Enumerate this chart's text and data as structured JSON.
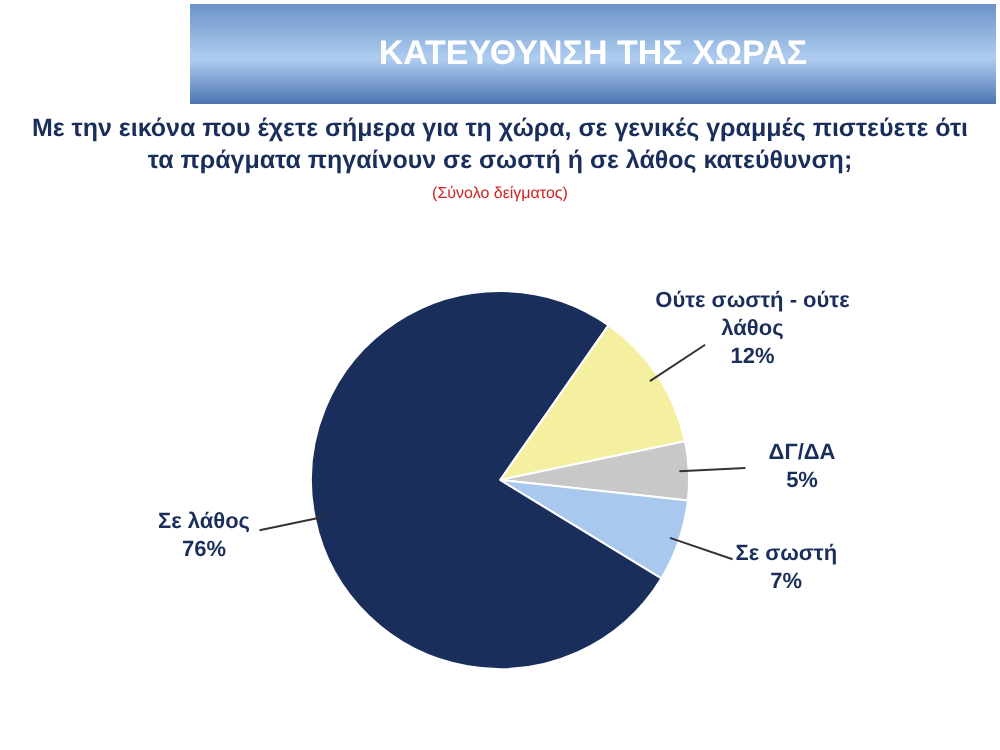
{
  "chart_data": {
    "type": "pie",
    "title": "ΚΑΤΕΥΘΥΝΣΗ ΤΗΣ ΧΩΡΑΣ",
    "subtitle": "Με την εικόνα που έχετε σήμερα για τη χώρα, σε γενικές γραμμές πιστεύετε ότι τα πράγματα πηγαίνουν σε σωστή ή σε λάθος κατεύθυνση;",
    "annotations": [
      "(Σύνολο δείγματος)"
    ],
    "categories": [
      "Ούτε σωστή - ούτε λάθος",
      "ΔΓ/ΔΑ",
      "Σε σωστή",
      "Σε λάθος"
    ],
    "values": [
      12,
      5,
      7,
      76
    ],
    "colors": [
      "#f5f0a0",
      "#c8c8c8",
      "#a8c8ee",
      "#1a2e5c"
    ],
    "value_labels": [
      "12%",
      "5%",
      "7%",
      "76%"
    ],
    "legend": false
  }
}
